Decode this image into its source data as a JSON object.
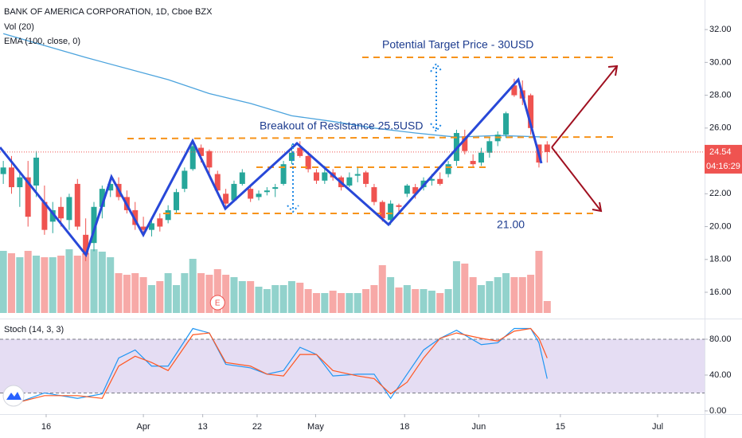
{
  "chart_data": [
    {
      "type": "candlestick",
      "title": "BANK OF AMERICA CORPORATION, 1D, Cboe BZX",
      "up_color": "#26a69a",
      "down_color": "#ef5350",
      "xlim": [
        -0.4,
        85.1
      ],
      "xticks": [
        {
          "value": 5.2,
          "label": "16"
        },
        {
          "value": 17,
          "label": "Apr"
        },
        {
          "value": 24.2,
          "label": "13"
        },
        {
          "value": 30.8,
          "label": "22"
        },
        {
          "value": 37.9,
          "label": "May"
        },
        {
          "value": 48.7,
          "label": "18"
        },
        {
          "value": 57.7,
          "label": "Jun"
        },
        {
          "value": 67.6,
          "label": "15"
        },
        {
          "value": 79.4,
          "label": "Jul"
        }
      ],
      "ylim": [
        14.4,
        33.8
      ],
      "yticks": [
        {
          "value": 16,
          "label": "16.00"
        },
        {
          "value": 18,
          "label": "18.00"
        },
        {
          "value": 20,
          "label": "20.00"
        },
        {
          "value": 22,
          "label": "22.00"
        },
        {
          "value": 24,
          "label": "24.00"
        },
        {
          "value": 26,
          "label": "26.00"
        },
        {
          "value": 28,
          "label": "28.00"
        },
        {
          "value": 30,
          "label": "30.00"
        },
        {
          "value": 32,
          "label": "32.00"
        }
      ],
      "open": [
        23.2,
        23.6,
        22.4,
        23.0,
        22.5,
        21.5,
        20.3,
        21.2,
        20.4,
        22.6,
        19.5,
        19.0,
        21.2,
        22.2,
        22.6,
        21.8,
        21.0,
        20.0,
        19.8,
        20.5,
        20.4,
        21.0,
        22.3,
        23.5,
        24.8,
        24.6,
        23.2,
        22.0,
        21.6,
        22.6,
        22.3,
        21.8,
        22.1,
        22.3,
        22.6,
        24.0,
        24.8,
        24.3,
        23.3,
        22.8,
        23.3,
        23.0,
        22.5,
        23.1,
        23.3,
        22.4,
        21.5,
        20.4,
        21.3,
        22.0,
        22.4,
        22.4,
        22.8,
        22.9,
        23.2,
        24.0,
        25.5,
        24.0,
        23.9,
        24.5,
        25.2,
        25.6,
        28.6,
        28.3,
        28.0,
        25.0,
        25.0
      ],
      "high": [
        24.0,
        24.3,
        23.3,
        24.0,
        24.6,
        22.5,
        21.5,
        21.8,
        22.0,
        22.9,
        20.5,
        21.5,
        22.5,
        23.0,
        23.0,
        22.2,
        21.5,
        20.6,
        20.5,
        20.8,
        21.3,
        22.3,
        23.6,
        25.2,
        25.0,
        24.7,
        23.4,
        22.3,
        22.8,
        23.5,
        22.5,
        22.2,
        22.4,
        22.6,
        24.0,
        25.0,
        25.2,
        24.4,
        23.5,
        23.7,
        23.5,
        23.1,
        23.3,
        23.6,
        23.4,
        22.6,
        21.6,
        21.6,
        21.4,
        22.6,
        22.6,
        23.0,
        23.2,
        23.3,
        24.0,
        25.9,
        25.9,
        24.4,
        24.8,
        25.4,
        25.8,
        27.0,
        29.0,
        28.9,
        28.1,
        25.0,
        25.2
      ],
      "low": [
        22.6,
        22.0,
        21.2,
        20.0,
        21.8,
        19.5,
        19.6,
        20.0,
        19.8,
        19.8,
        17.9,
        18.5,
        20.5,
        21.8,
        21.6,
        20.8,
        19.8,
        19.5,
        19.4,
        19.7,
        20.2,
        20.8,
        22.1,
        23.4,
        23.9,
        23.2,
        22.0,
        21.2,
        21.5,
        22.5,
        21.5,
        21.6,
        21.9,
        21.8,
        22.5,
        23.8,
        24.2,
        23.3,
        22.6,
        22.6,
        22.8,
        22.2,
        22.4,
        22.7,
        22.4,
        21.3,
        20.3,
        20.1,
        20.8,
        21.8,
        21.7,
        22.2,
        22.5,
        22.5,
        23.0,
        23.7,
        24.4,
        23.6,
        23.7,
        24.2,
        24.9,
        25.4,
        27.9,
        27.4,
        25.6,
        23.6,
        23.9
      ],
      "close": [
        23.6,
        22.4,
        23.0,
        20.6,
        24.2,
        19.8,
        21.0,
        20.5,
        21.8,
        20.0,
        18.3,
        21.2,
        22.3,
        22.6,
        21.8,
        21.0,
        20.1,
        19.8,
        20.2,
        20.0,
        21.0,
        22.1,
        23.4,
        24.9,
        24.3,
        23.6,
        22.2,
        21.4,
        22.6,
        23.3,
        21.7,
        22.0,
        22.2,
        22.4,
        23.8,
        24.5,
        24.3,
        23.5,
        22.8,
        23.3,
        23.0,
        22.4,
        23.0,
        23.2,
        22.6,
        21.5,
        20.5,
        21.4,
        21.2,
        22.5,
        22.0,
        22.8,
        22.9,
        22.6,
        23.8,
        25.7,
        24.6,
        23.8,
        24.5,
        25.2,
        25.6,
        26.9,
        28.0,
        27.8,
        26.0,
        23.9,
        24.54
      ],
      "volume_name": "Vol (20)",
      "volume": [
        78,
        75,
        70,
        78,
        72,
        70,
        70,
        72,
        80,
        72,
        75,
        80,
        77,
        70,
        50,
        48,
        50,
        45,
        35,
        40,
        50,
        35,
        50,
        68,
        50,
        48,
        55,
        48,
        45,
        40,
        40,
        33,
        30,
        35,
        35,
        40,
        38,
        30,
        25,
        25,
        28,
        25,
        25,
        25,
        30,
        35,
        60,
        45,
        32,
        35,
        30,
        30,
        28,
        25,
        30,
        65,
        62,
        45,
        35,
        40,
        45,
        50,
        45,
        45,
        48,
        78,
        15
      ],
      "ema": {
        "name": "EMA (100, close, 0)",
        "color": "#4ba3dd",
        "x": [
          0,
          10,
          20,
          25,
          30,
          35,
          40,
          45,
          50,
          55,
          60,
          66
        ],
        "values": [
          31.75,
          30.3,
          28.95,
          28.1,
          27.5,
          26.75,
          26.4,
          26.0,
          25.7,
          25.45,
          25.55,
          25.45
        ]
      },
      "last_price": 24.54,
      "last_price_label": "24.54",
      "countdown": "04:16:29",
      "events": [
        {
          "x": 26,
          "label": "E"
        }
      ],
      "annotations": [
        "Potential Target Price - 30USD",
        "Breakout of Resistance 25.5USD",
        "21.00"
      ]
    },
    {
      "type": "line",
      "title": "Stoch (14, 3, 3)",
      "ylim": [
        -3.6,
        103.1
      ],
      "yticks": [
        {
          "value": 0,
          "label": "0.00"
        },
        {
          "value": 40,
          "label": "40.00"
        },
        {
          "value": 80,
          "label": "80.00"
        }
      ],
      "bands": [
        20,
        80
      ],
      "x": [
        2,
        5,
        9,
        12,
        14,
        16,
        18,
        20,
        23,
        25,
        27,
        30,
        32,
        34,
        36,
        38,
        40,
        43,
        45,
        47,
        49,
        51,
        53,
        55,
        58,
        60,
        62,
        64,
        65,
        66
      ],
      "series": [
        {
          "color": "#2196f3",
          "values": [
            10,
            20,
            14,
            19,
            59,
            68,
            50,
            50,
            92,
            87,
            52,
            48,
            41,
            45,
            71,
            63,
            39,
            41,
            41,
            14,
            41,
            68,
            81,
            90,
            74,
            76,
            92,
            92,
            76,
            36
          ]
        },
        {
          "color": "#ff5722",
          "values": [
            10,
            17,
            17,
            14,
            50,
            61,
            54,
            45,
            85,
            87,
            54,
            50,
            41,
            39,
            63,
            63,
            45,
            39,
            36,
            19,
            32,
            59,
            81,
            87,
            81,
            78,
            89,
            92,
            81,
            59
          ]
        }
      ]
    }
  ]
}
